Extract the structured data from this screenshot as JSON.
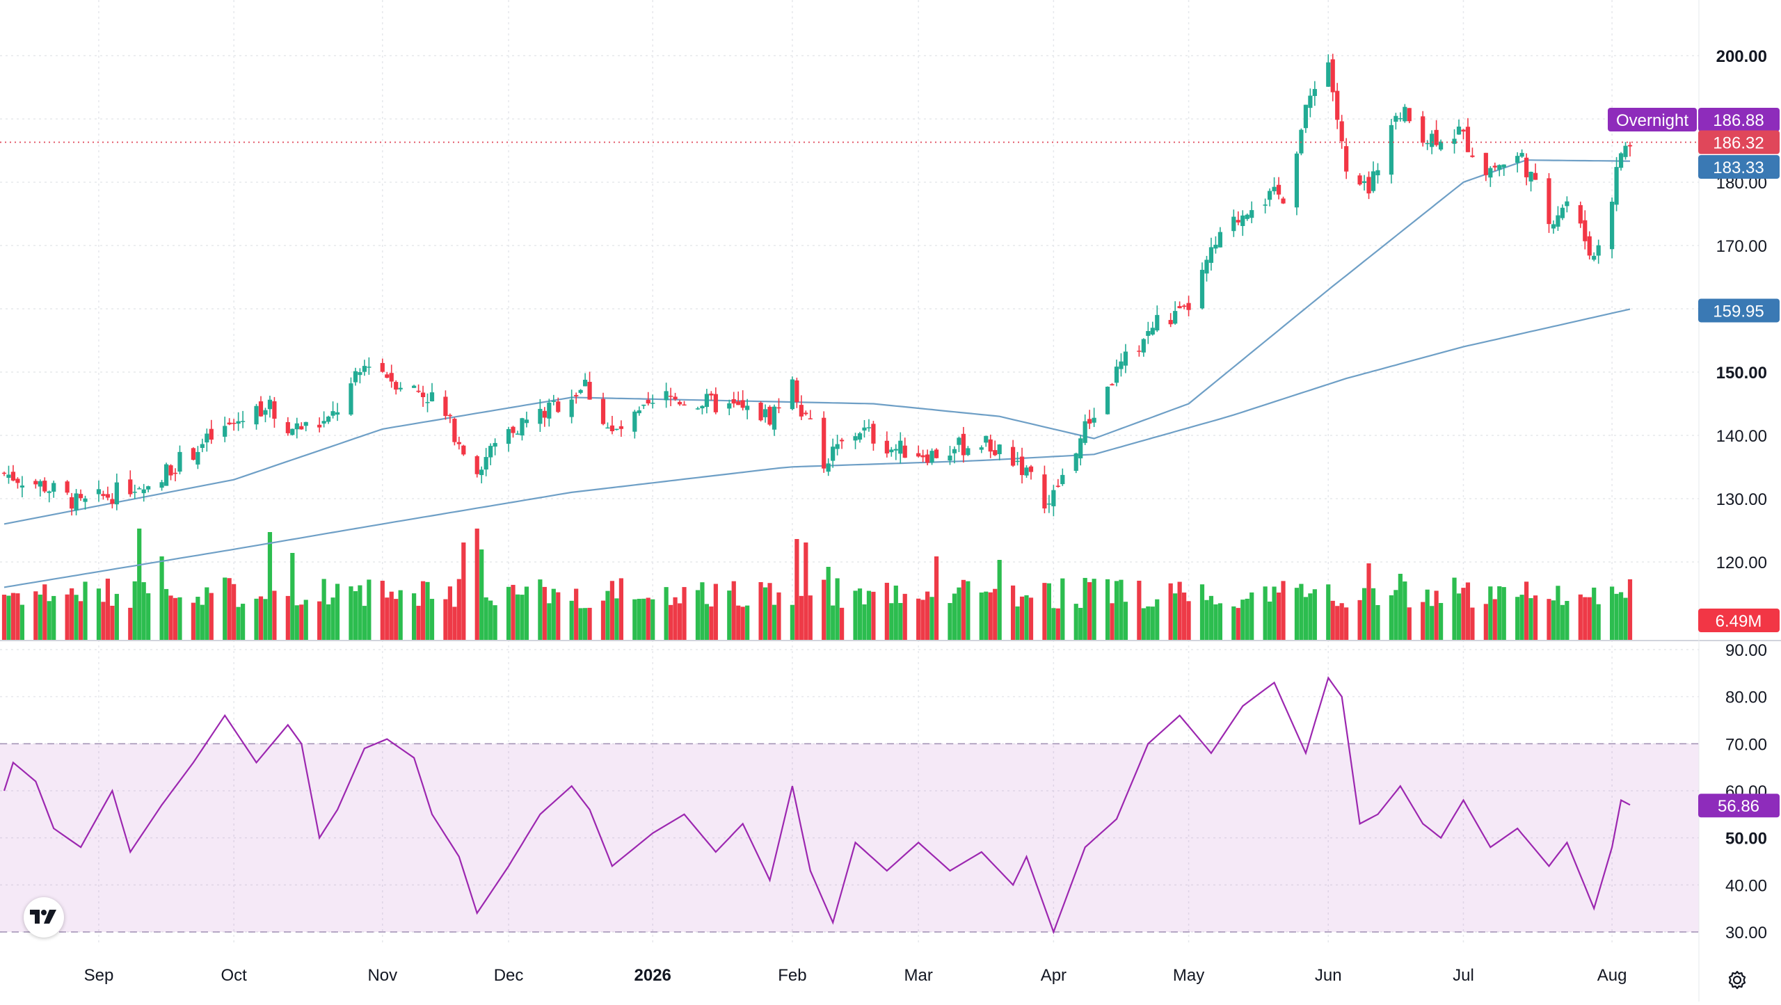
{
  "chart_data": [
    {
      "type": "candlestick",
      "pane": "price",
      "title": "",
      "y_scale": "linear",
      "ylim": [
        110,
        205
      ],
      "y_ticks": [
        "200.00",
        "180.00",
        "170.00",
        "150.00",
        "140.00",
        "130.00",
        "120.00"
      ],
      "y_ticks_bold": [
        "200.00",
        "150.00"
      ],
      "x_labels": [
        "Sep",
        "Oct",
        "Nov",
        "Dec",
        "2026",
        "Feb",
        "Mar",
        "Apr",
        "May",
        "Jun",
        "Jul",
        "Aug"
      ],
      "x_label_dates": [
        "2025-09-01",
        "2025-10-01",
        "2025-11-03",
        "2025-12-01",
        "2026-01-02",
        "2026-02-02",
        "2026-03-02",
        "2026-04-01",
        "2026-05-01",
        "2026-06-01",
        "2026-07-01",
        "2026-08-03"
      ],
      "x_label_bold": [
        "2026"
      ],
      "dates_range": [
        "2025-08-11",
        "2026-08-07"
      ],
      "close_keypoints": [
        [
          "2025-08-11",
          134
        ],
        [
          "2025-08-20",
          132
        ],
        [
          "2025-08-28",
          129
        ],
        [
          "2025-09-05",
          131
        ],
        [
          "2025-09-15",
          134
        ],
        [
          "2025-09-25",
          139
        ],
        [
          "2025-10-08",
          145
        ],
        [
          "2025-10-14",
          141
        ],
        [
          "2025-10-22",
          142
        ],
        [
          "2025-10-31",
          152
        ],
        [
          "2025-11-05",
          149
        ],
        [
          "2025-11-14",
          146
        ],
        [
          "2025-11-24",
          135
        ],
        [
          "2025-12-01",
          141
        ],
        [
          "2025-12-10",
          144
        ],
        [
          "2025-12-18",
          148
        ],
        [
          "2025-12-24",
          140
        ],
        [
          "2026-01-05",
          146
        ],
        [
          "2026-01-15",
          145
        ],
        [
          "2026-01-28",
          143
        ],
        [
          "2026-02-02",
          148
        ],
        [
          "2026-02-09",
          136
        ],
        [
          "2026-02-17",
          141
        ],
        [
          "2026-02-24",
          138
        ],
        [
          "2026-03-05",
          137
        ],
        [
          "2026-03-16",
          139
        ],
        [
          "2026-03-24",
          136
        ],
        [
          "2026-03-31",
          129
        ],
        [
          "2026-04-08",
          141
        ],
        [
          "2026-04-15",
          150
        ],
        [
          "2026-04-24",
          158
        ],
        [
          "2026-04-30",
          159
        ],
        [
          "2026-05-07",
          170
        ],
        [
          "2026-05-15",
          177
        ],
        [
          "2026-05-22",
          178
        ],
        [
          "2026-05-29",
          196
        ],
        [
          "2026-06-01",
          199
        ],
        [
          "2026-06-05",
          181
        ],
        [
          "2026-06-10",
          178
        ],
        [
          "2026-06-16",
          192
        ],
        [
          "2026-06-23",
          187
        ],
        [
          "2026-06-30",
          188
        ],
        [
          "2026-07-06",
          182
        ],
        [
          "2026-07-14",
          184
        ],
        [
          "2026-07-20",
          174
        ],
        [
          "2026-07-24",
          177
        ],
        [
          "2026-07-30",
          168
        ],
        [
          "2026-08-03",
          178
        ],
        [
          "2026-08-05",
          185
        ],
        [
          "2026-08-07",
          186
        ]
      ],
      "ma_short": {
        "keypoints": [
          [
            "2025-08-11",
            126
          ],
          [
            "2025-10-01",
            133
          ],
          [
            "2025-11-03",
            141
          ],
          [
            "2025-12-15",
            146
          ],
          [
            "2026-02-20",
            145
          ],
          [
            "2026-03-20",
            143
          ],
          [
            "2026-04-10",
            139.5
          ],
          [
            "2026-05-01",
            145
          ],
          [
            "2026-06-01",
            163
          ],
          [
            "2026-07-01",
            180
          ],
          [
            "2026-07-15",
            183.5
          ],
          [
            "2026-08-07",
            183.33
          ]
        ]
      },
      "ma_long": {
        "keypoints": [
          [
            "2025-08-11",
            116
          ],
          [
            "2025-10-01",
            122
          ],
          [
            "2025-11-03",
            126
          ],
          [
            "2025-12-15",
            131
          ],
          [
            "2026-02-01",
            135
          ],
          [
            "2026-03-15",
            136
          ],
          [
            "2026-04-10",
            137
          ],
          [
            "2026-05-10",
            143
          ],
          [
            "2026-06-05",
            149
          ],
          [
            "2026-07-01",
            154
          ],
          [
            "2026-08-07",
            159.95
          ]
        ]
      },
      "price_line": {
        "value": 186.32,
        "style": "dotted",
        "color": "#e0475a"
      },
      "tags": [
        {
          "label": "Overnight",
          "value": "186.88",
          "color": "#8e2cbb"
        },
        {
          "value": "186.32",
          "color": "#e0475a"
        },
        {
          "value": "183.33",
          "color": "#3a79b4"
        },
        {
          "value": "159.95",
          "color": "#3a79b4"
        }
      ],
      "colors": {
        "up": "#22ab94",
        "down": "#f23645",
        "ma": "#6e9fc6",
        "grid": "#e6e8ec"
      },
      "grid": true
    },
    {
      "type": "bar",
      "pane": "volume",
      "last_value_tag": {
        "value": "6.49M",
        "color": "#f23645"
      },
      "spikes": [
        [
          "2025-09-10",
          3.2
        ],
        [
          "2025-09-15",
          2.4
        ],
        [
          "2025-10-09",
          3.1
        ],
        [
          "2025-10-14",
          2.5
        ],
        [
          "2025-11-21",
          2.8
        ],
        [
          "2025-11-24",
          3.2
        ],
        [
          "2025-11-25",
          2.6
        ],
        [
          "2026-02-03",
          2.9
        ],
        [
          "2026-02-05",
          2.8
        ],
        [
          "2026-02-10",
          2.1
        ],
        [
          "2026-03-06",
          2.4
        ],
        [
          "2026-03-20",
          2.3
        ],
        [
          "2026-06-10",
          2.2
        ],
        [
          "2026-06-13",
          2.4
        ],
        [
          "2026-06-17",
          1.9
        ]
      ]
    },
    {
      "type": "line",
      "pane": "rsi",
      "ylim": [
        30,
        90
      ],
      "y_ticks": [
        "90.00",
        "80.00",
        "70.00",
        "60.00",
        "50.00",
        "40.00",
        "30.00"
      ],
      "y_ticks_bold": [
        "50.00"
      ],
      "band": [
        30,
        70
      ],
      "last_value_tag": {
        "value": "56.86",
        "color": "#8e2cbb"
      },
      "color": "#9c27b0",
      "keypoints": [
        [
          "2025-08-11",
          60
        ],
        [
          "2025-08-13",
          66
        ],
        [
          "2025-08-18",
          62
        ],
        [
          "2025-08-22",
          52
        ],
        [
          "2025-08-28",
          48
        ],
        [
          "2025-09-04",
          60
        ],
        [
          "2025-09-08",
          47
        ],
        [
          "2025-09-15",
          57
        ],
        [
          "2025-09-22",
          66
        ],
        [
          "2025-09-29",
          76
        ],
        [
          "2025-10-06",
          66
        ],
        [
          "2025-10-13",
          74
        ],
        [
          "2025-10-16",
          70
        ],
        [
          "2025-10-20",
          50
        ],
        [
          "2025-10-24",
          56
        ],
        [
          "2025-10-30",
          69
        ],
        [
          "2025-11-04",
          71
        ],
        [
          "2025-11-10",
          67
        ],
        [
          "2025-11-14",
          55
        ],
        [
          "2025-11-20",
          46
        ],
        [
          "2025-11-24",
          34
        ],
        [
          "2025-12-01",
          44
        ],
        [
          "2025-12-08",
          55
        ],
        [
          "2025-12-15",
          61
        ],
        [
          "2025-12-19",
          56
        ],
        [
          "2025-12-24",
          44
        ],
        [
          "2026-01-02",
          51
        ],
        [
          "2026-01-09",
          55
        ],
        [
          "2026-01-16",
          47
        ],
        [
          "2026-01-22",
          53
        ],
        [
          "2026-01-28",
          41
        ],
        [
          "2026-02-02",
          61
        ],
        [
          "2026-02-06",
          43
        ],
        [
          "2026-02-11",
          32
        ],
        [
          "2026-02-16",
          49
        ],
        [
          "2026-02-23",
          43
        ],
        [
          "2026-03-02",
          49
        ],
        [
          "2026-03-09",
          43
        ],
        [
          "2026-03-16",
          47
        ],
        [
          "2026-03-23",
          40
        ],
        [
          "2026-03-26",
          46
        ],
        [
          "2026-04-01",
          30
        ],
        [
          "2026-04-08",
          48
        ],
        [
          "2026-04-15",
          54
        ],
        [
          "2026-04-22",
          70
        ],
        [
          "2026-04-29",
          76
        ],
        [
          "2026-05-06",
          68
        ],
        [
          "2026-05-13",
          78
        ],
        [
          "2026-05-20",
          83
        ],
        [
          "2026-05-27",
          68
        ],
        [
          "2026-06-01",
          84
        ],
        [
          "2026-06-04",
          80
        ],
        [
          "2026-06-08",
          53
        ],
        [
          "2026-06-12",
          55
        ],
        [
          "2026-06-17",
          61
        ],
        [
          "2026-06-22",
          53
        ],
        [
          "2026-06-26",
          50
        ],
        [
          "2026-07-01",
          58
        ],
        [
          "2026-07-07",
          48
        ],
        [
          "2026-07-13",
          52
        ],
        [
          "2026-07-20",
          44
        ],
        [
          "2026-07-24",
          49
        ],
        [
          "2026-07-30",
          35
        ],
        [
          "2026-08-03",
          48
        ],
        [
          "2026-08-05",
          58
        ],
        [
          "2026-08-07",
          57
        ]
      ]
    }
  ],
  "ui": {
    "logo_icon": "tradingview-logo-icon",
    "settings_icon": "gear-icon"
  }
}
